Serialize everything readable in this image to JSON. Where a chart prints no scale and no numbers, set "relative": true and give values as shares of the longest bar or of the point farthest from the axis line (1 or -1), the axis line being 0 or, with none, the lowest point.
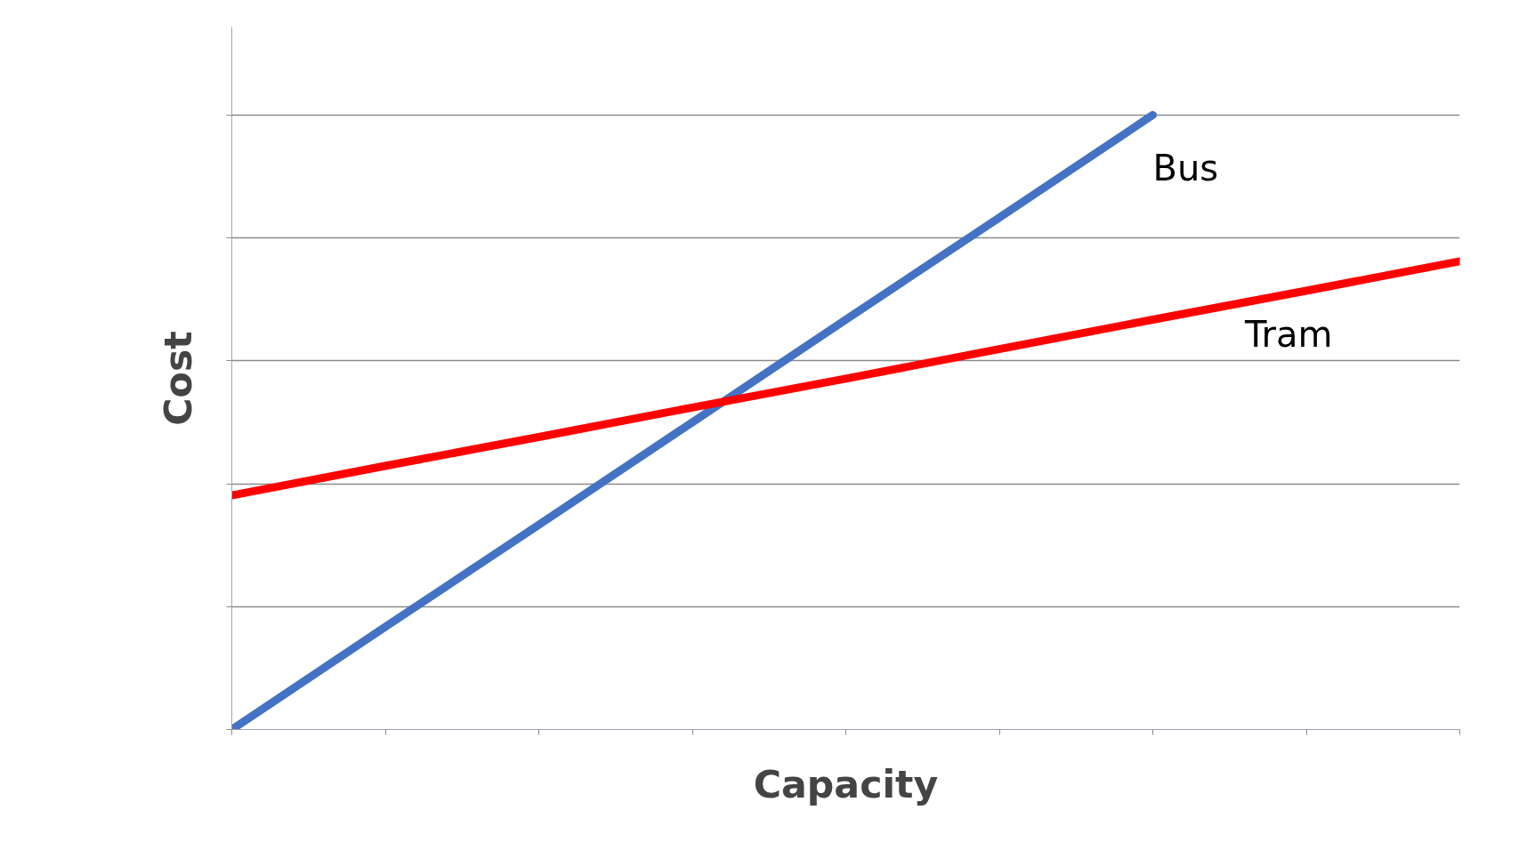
{
  "chart_data": {
    "type": "line",
    "xlabel": "Capacity",
    "ylabel": "Cost",
    "relative": true,
    "tick_labels": false,
    "grid": "y",
    "legend": false,
    "marker": "none",
    "line_style": "solid",
    "categories": [
      null,
      null,
      null,
      null,
      null,
      null,
      null,
      null,
      null
    ],
    "series": [
      {
        "name": "Bus",
        "color": "#4472c4",
        "values": [
          0,
          0.167,
          0.333,
          0.5,
          0.667,
          0.833,
          1,
          null,
          null
        ]
      },
      {
        "name": "Tram",
        "color": "#ff0000",
        "values": [
          0.381,
          0.429,
          0.476,
          0.524,
          0.571,
          0.619,
          0.667,
          0.714,
          0.762
        ]
      }
    ]
  }
}
